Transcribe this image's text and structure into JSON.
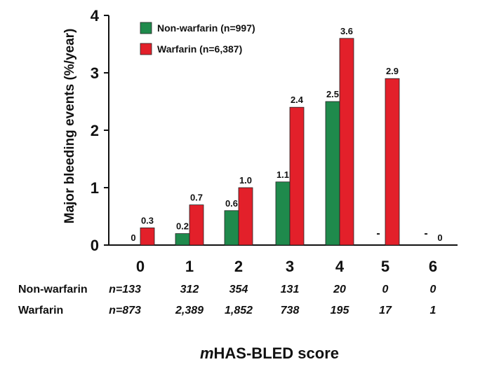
{
  "chart_data": {
    "type": "bar",
    "title": "",
    "xlabel_prefix": "m",
    "xlabel_main": "HAS-BLED score",
    "ylabel": "Major bleeding events (%/year)",
    "ylim": [
      0,
      4
    ],
    "yticks": [
      "0",
      "1",
      "2",
      "3",
      "4"
    ],
    "ytick_values": [
      0,
      1,
      2,
      3,
      4
    ],
    "categories": [
      "0",
      "1",
      "2",
      "3",
      "4",
      "5",
      "6"
    ],
    "legend_position": "top-left",
    "series": [
      {
        "name": "Non-warfarin (n=997)",
        "color": "#1f8a4c",
        "values": [
          0,
          0.2,
          0.6,
          1.1,
          2.5,
          0,
          0
        ],
        "labels": [
          "0",
          "0.2",
          "0.6",
          "1.1",
          "2.5",
          "-",
          "-"
        ]
      },
      {
        "name": "Warfarin (n=6,387)",
        "color": "#e3202a",
        "values": [
          0.3,
          0.7,
          1.0,
          2.4,
          3.6,
          2.9,
          0
        ],
        "labels": [
          "0.3",
          "0.7",
          "1.0",
          "2.4",
          "3.6",
          "2.9",
          "0"
        ]
      }
    ],
    "counts_table": [
      {
        "row_label": "Non-warfarin",
        "values": [
          "n=133",
          "312",
          "354",
          "131",
          "20",
          "0",
          "0"
        ]
      },
      {
        "row_label": "Warfarin",
        "values": [
          "n=873",
          "2,389",
          "1,852",
          "738",
          "195",
          "17",
          "1"
        ]
      }
    ]
  }
}
